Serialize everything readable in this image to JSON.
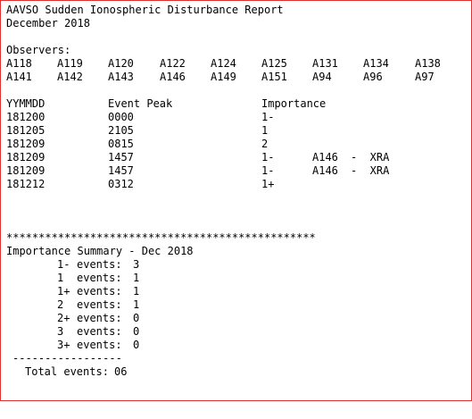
{
  "report": {
    "title": "AAVSO Sudden Ionospheric Disturbance Report",
    "period": "December 2018"
  },
  "observers": {
    "label": "Observers:",
    "row1": [
      "A118",
      "A119",
      "A120",
      "A122",
      "A124",
      "A125",
      "A131",
      "A134",
      "A138"
    ],
    "row2": [
      "A141",
      "A142",
      "A143",
      "A146",
      "A149",
      "A151",
      "A94",
      "A96",
      "A97"
    ]
  },
  "events": {
    "headers": {
      "date": "YYMMDD",
      "peak": "Event Peak",
      "importance": "Importance"
    },
    "rows": [
      {
        "date": "181200",
        "peak": "0000",
        "importance": "1-",
        "observer": "",
        "note": ""
      },
      {
        "date": "181205",
        "peak": "2105",
        "importance": "1",
        "observer": "",
        "note": ""
      },
      {
        "date": "181209",
        "peak": "0815",
        "importance": "2",
        "observer": "",
        "note": ""
      },
      {
        "date": "181209",
        "peak": "1457",
        "importance": "1-",
        "observer": "A146",
        "note": "-  XRA"
      },
      {
        "date": "181209",
        "peak": "1457",
        "importance": "1-",
        "observer": "A146",
        "note": "-  XRA"
      },
      {
        "date": "181212",
        "peak": "0312",
        "importance": "1+",
        "observer": "",
        "note": ""
      }
    ]
  },
  "summary": {
    "separator": "************************************************",
    "title": "Importance Summary - Dec 2018",
    "rows": [
      {
        "level": "1-",
        "label": "events:",
        "count": "3"
      },
      {
        "level": "1 ",
        "label": "events:",
        "count": "1"
      },
      {
        "level": "1+",
        "label": "events:",
        "count": "1"
      },
      {
        "level": "2 ",
        "label": "events:",
        "count": "1"
      },
      {
        "level": "2+",
        "label": "events:",
        "count": "0"
      },
      {
        "level": "3 ",
        "label": "events:",
        "count": "0"
      },
      {
        "level": "3+",
        "label": "events:",
        "count": "0"
      }
    ],
    "dashes": "-----------------",
    "total_label": "Total events:",
    "total_value": "06"
  }
}
